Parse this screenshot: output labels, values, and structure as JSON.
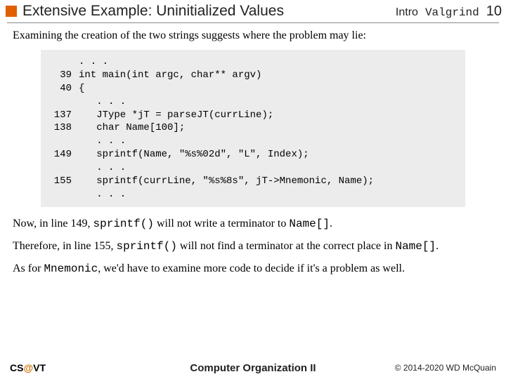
{
  "header": {
    "title": "Extensive Example:  Uninitialized Values",
    "right_label": "Intro",
    "right_mono": "Valgrind",
    "page_num": "10",
    "bullet_color": "#e06000"
  },
  "intro": "Examining the creation of the two strings suggests where the problem may lie:",
  "code": {
    "background": "#ececec",
    "fontsize": 14,
    "lines": [
      {
        "num": "",
        "text": ". . ."
      },
      {
        "num": "39",
        "text": "int main(int argc, char** argv)"
      },
      {
        "num": "40",
        "text": "{"
      },
      {
        "num": "",
        "text": "   . . ."
      },
      {
        "num": "137",
        "text": "   JType *jT = parseJT(currLine);"
      },
      {
        "num": "138",
        "text": "   char Name[100];"
      },
      {
        "num": "",
        "text": "   . . ."
      },
      {
        "num": "149",
        "text": "   sprintf(Name, \"%s%02d\", \"L\", Index);"
      },
      {
        "num": "",
        "text": "   . . ."
      },
      {
        "num": "155",
        "text": "   sprintf(currLine, \"%s%8s\", jT->Mnemonic, Name);"
      },
      {
        "num": "",
        "text": "   . . ."
      }
    ]
  },
  "paragraphs": {
    "p1_a": "Now, in line 149, ",
    "p1_mono": "sprintf()",
    "p1_b": " will not write a terminator to ",
    "p1_mono2": "Name[]",
    "p1_c": ".",
    "p2_a": "Therefore, in line 155, ",
    "p2_mono": "sprintf()",
    "p2_b": " will not find a terminator at the correct place in ",
    "p2_mono2": "Name[]",
    "p2_c": ".",
    "p3_a": "As for ",
    "p3_mono": "Mnemonic",
    "p3_b": ", we'd have to examine more code to decide if it's a problem as well."
  },
  "footer": {
    "left_a": "CS",
    "left_at": "@",
    "left_b": "VT",
    "center": "Computer Organization II",
    "right": "© 2014-2020 WD McQuain"
  }
}
